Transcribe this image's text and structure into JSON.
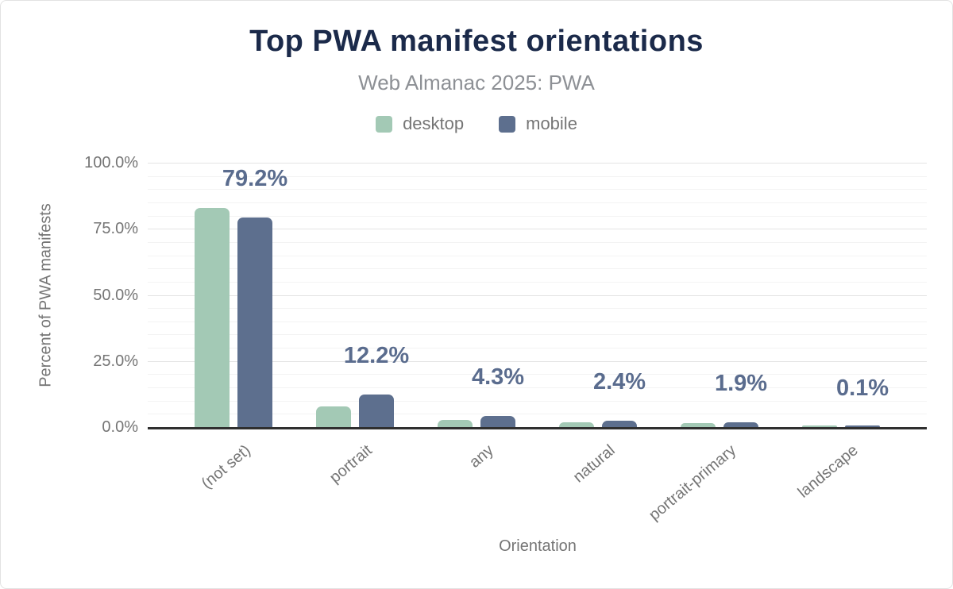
{
  "chart_data": {
    "type": "bar",
    "title": "Top PWA manifest orientations",
    "subtitle": "Web Almanac 2025: PWA",
    "xlabel": "Orientation",
    "ylabel": "Percent of PWA manifests",
    "categories": [
      "(not set)",
      "portrait",
      "any",
      "natural",
      "portrait-primary",
      "landscape"
    ],
    "series": [
      {
        "name": "desktop",
        "color": "#a3c9b5",
        "values": [
          83.0,
          7.8,
          2.7,
          1.8,
          1.5,
          0.4
        ]
      },
      {
        "name": "mobile",
        "color": "#5d6f8e",
        "values": [
          79.2,
          12.2,
          4.3,
          2.4,
          1.9,
          0.1
        ]
      }
    ],
    "bar_labels": [
      "79.2%",
      "12.2%",
      "4.3%",
      "2.4%",
      "1.9%",
      "0.1%"
    ],
    "y_ticks": [
      "0.0%",
      "25.0%",
      "50.0%",
      "75.0%",
      "100.0%"
    ],
    "y_tick_values": [
      0,
      25,
      50,
      75,
      100
    ],
    "ylim": [
      0,
      100
    ],
    "grid": "horizontal, minor every 5%, major every 25%",
    "legend_position": "top",
    "bar_label_series": "mobile"
  },
  "colors": {
    "title": "#1b2a4a",
    "subtitle": "#8d9095",
    "axis_text": "#757575",
    "data_label": "#5a6c8e",
    "desktop_bar": "#a3c9b5",
    "mobile_bar": "#5d6f8e",
    "axis_line": "#2f2f2f",
    "grid_major": "#e4e4e4",
    "grid_minor": "#f3f3f3"
  }
}
